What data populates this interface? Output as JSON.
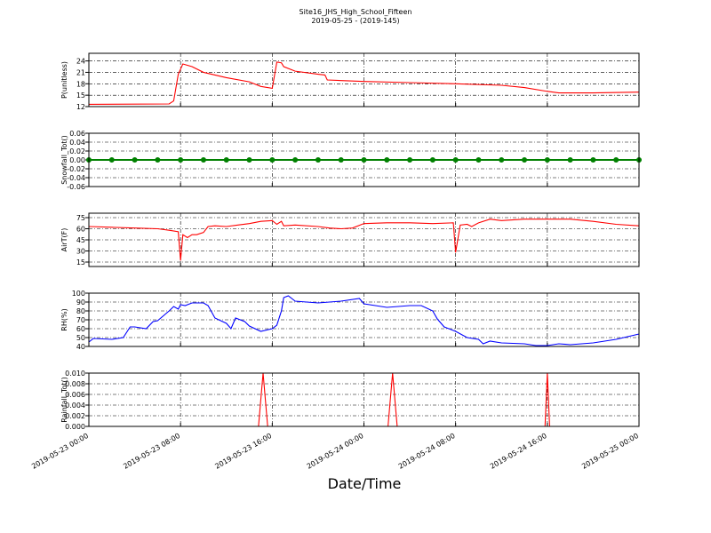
{
  "chart_data": [
    {
      "type": "line",
      "title": "Site16_JHS_High_School_Fifteen",
      "subtitle": "2019-05-25 - (2019-145)",
      "ylabel": "P(unitless)",
      "color": "#ff0000",
      "grid": true,
      "ylim": [
        12,
        26
      ],
      "yticks": [
        12,
        15,
        18,
        21,
        24
      ],
      "x": [
        "2019-05-23 00:00",
        "2019-05-23 07:00",
        "2019-05-23 07:24",
        "2019-05-23 07:48",
        "2019-05-23 08:12",
        "2019-05-23 09:00",
        "2019-05-23 10:00",
        "2019-05-23 12:00",
        "2019-05-23 14:00",
        "2019-05-23 15:00",
        "2019-05-23 16:00",
        "2019-05-23 16:24",
        "2019-05-23 16:48",
        "2019-05-23 17:00",
        "2019-05-23 18:00",
        "2019-05-23 20:00",
        "2019-05-23 20:36",
        "2019-05-23 20:48",
        "2019-05-24 00:00",
        "2019-05-24 04:00",
        "2019-05-24 08:00",
        "2019-05-24 12:00",
        "2019-05-24 14:00",
        "2019-05-24 16:00",
        "2019-05-24 17:00",
        "2019-05-24 20:00",
        "2019-05-25 00:00"
      ],
      "values": [
        12.6,
        12.7,
        13.5,
        20.5,
        23.2,
        22.5,
        21.0,
        19.6,
        18.5,
        17.3,
        16.8,
        23.7,
        23.5,
        22.5,
        21.3,
        20.5,
        20.3,
        19.0,
        18.6,
        18.3,
        18.0,
        17.6,
        17.0,
        16.0,
        15.6,
        15.6,
        15.8
      ]
    },
    {
      "type": "line",
      "ylabel": "Snowfall_Tot()",
      "color": "#008000",
      "marker": "o",
      "grid": true,
      "ylim": [
        -0.06,
        0.06
      ],
      "yticks": [
        -0.06,
        -0.04,
        -0.02,
        {
          "value": 0,
          "label": "0.00"
        },
        0.02,
        0.04,
        0.06
      ],
      "x": [
        "2019-05-23 00:00",
        "2019-05-23 02:00",
        "2019-05-23 04:00",
        "2019-05-23 06:00",
        "2019-05-23 08:00",
        "2019-05-23 10:00",
        "2019-05-23 12:00",
        "2019-05-23 14:00",
        "2019-05-23 16:00",
        "2019-05-23 18:00",
        "2019-05-23 20:00",
        "2019-05-23 22:00",
        "2019-05-24 00:00",
        "2019-05-24 02:00",
        "2019-05-24 04:00",
        "2019-05-24 06:00",
        "2019-05-24 08:00",
        "2019-05-24 10:00",
        "2019-05-24 12:00",
        "2019-05-24 14:00",
        "2019-05-24 16:00",
        "2019-05-24 18:00",
        "2019-05-24 20:00",
        "2019-05-24 22:00",
        "2019-05-25 00:00"
      ],
      "values": [
        0,
        0,
        0,
        0,
        0,
        0,
        0,
        0,
        0,
        0,
        0,
        0,
        0,
        0,
        0,
        0,
        0,
        0,
        0,
        0,
        0,
        0,
        0,
        0,
        0
      ]
    },
    {
      "type": "line",
      "ylabel": "AirT(F)",
      "color": "#ff0000",
      "grid": true,
      "ylim": [
        9,
        81
      ],
      "yticks": [
        15,
        30,
        45,
        60,
        75
      ],
      "x": [
        "2019-05-23 00:00",
        "2019-05-23 02:00",
        "2019-05-23 04:00",
        "2019-05-23 06:00",
        "2019-05-23 07:00",
        "2019-05-23 07:48",
        "2019-05-23 08:00",
        "2019-05-23 08:12",
        "2019-05-23 08:36",
        "2019-05-23 09:00",
        "2019-05-23 09:24",
        "2019-05-23 10:00",
        "2019-05-23 10:24",
        "2019-05-23 11:00",
        "2019-05-23 12:00",
        "2019-05-23 13:00",
        "2019-05-23 14:00",
        "2019-05-23 15:00",
        "2019-05-23 16:00",
        "2019-05-23 16:24",
        "2019-05-23 16:48",
        "2019-05-23 17:00",
        "2019-05-23 18:00",
        "2019-05-23 20:00",
        "2019-05-23 21:00",
        "2019-05-23 22:00",
        "2019-05-23 23:00",
        "2019-05-24 00:00",
        "2019-05-24 02:00",
        "2019-05-24 04:00",
        "2019-05-24 06:00",
        "2019-05-24 07:48",
        "2019-05-24 08:00",
        "2019-05-24 08:24",
        "2019-05-24 09:00",
        "2019-05-24 09:24",
        "2019-05-24 10:00",
        "2019-05-24 11:00",
        "2019-05-24 12:00",
        "2019-05-24 14:00",
        "2019-05-24 16:00",
        "2019-05-24 18:00",
        "2019-05-24 20:00",
        "2019-05-24 22:00",
        "2019-05-25 00:00"
      ],
      "values": [
        63,
        62,
        61,
        60,
        58,
        56,
        17,
        52,
        48,
        52,
        52,
        55,
        63,
        64,
        63,
        65,
        67,
        70,
        71,
        66,
        70,
        64,
        65,
        63,
        61,
        60,
        61,
        67,
        68,
        68,
        67,
        68,
        28,
        65,
        66,
        63,
        68,
        73,
        71,
        73,
        73,
        73,
        70,
        66,
        64
      ]
    },
    {
      "type": "line",
      "ylabel": "RH(%)",
      "color": "#0000ff",
      "grid": true,
      "ylim": [
        40,
        100
      ],
      "yticks": [
        40,
        50,
        60,
        70,
        80,
        90,
        100
      ],
      "x": [
        "2019-05-23 00:00",
        "2019-05-23 00:24",
        "2019-05-23 02:00",
        "2019-05-23 03:00",
        "2019-05-23 03:36",
        "2019-05-23 04:00",
        "2019-05-23 05:00",
        "2019-05-23 05:36",
        "2019-05-23 06:00",
        "2019-05-23 07:00",
        "2019-05-23 07:24",
        "2019-05-23 07:48",
        "2019-05-23 08:00",
        "2019-05-23 08:24",
        "2019-05-23 09:00",
        "2019-05-23 10:00",
        "2019-05-23 10:24",
        "2019-05-23 11:00",
        "2019-05-23 12:00",
        "2019-05-23 12:24",
        "2019-05-23 12:48",
        "2019-05-23 13:36",
        "2019-05-23 14:00",
        "2019-05-23 15:00",
        "2019-05-23 16:00",
        "2019-05-23 16:24",
        "2019-05-23 16:48",
        "2019-05-23 17:00",
        "2019-05-23 17:24",
        "2019-05-23 18:00",
        "2019-05-23 20:00",
        "2019-05-23 22:00",
        "2019-05-23 23:36",
        "2019-05-24 00:00",
        "2019-05-24 01:00",
        "2019-05-24 02:00",
        "2019-05-24 04:00",
        "2019-05-24 05:00",
        "2019-05-24 06:00",
        "2019-05-24 06:24",
        "2019-05-24 07:00",
        "2019-05-24 08:00",
        "2019-05-24 09:00",
        "2019-05-24 10:00",
        "2019-05-24 10:24",
        "2019-05-24 11:00",
        "2019-05-24 12:00",
        "2019-05-24 14:00",
        "2019-05-24 15:00",
        "2019-05-24 16:00",
        "2019-05-24 17:00",
        "2019-05-24 18:00",
        "2019-05-24 20:00",
        "2019-05-24 22:00",
        "2019-05-25 00:00"
      ],
      "values": [
        45,
        49,
        48,
        50,
        62,
        62,
        60,
        68,
        69,
        80,
        85,
        82,
        87,
        86,
        89,
        89,
        86,
        72,
        66,
        60,
        72,
        68,
        63,
        57,
        60,
        64,
        80,
        95,
        97,
        91,
        89,
        91,
        94,
        88,
        86,
        84,
        86,
        86,
        80,
        71,
        62,
        57,
        50,
        48,
        43,
        46,
        44,
        43,
        41,
        41,
        43,
        42,
        44,
        48,
        54
      ]
    },
    {
      "type": "line",
      "ylabel": "Rainfall_Tot()",
      "xlabel": "Date/Time",
      "color": "#ff0000",
      "grid": true,
      "ylim": [
        0,
        0.01
      ],
      "yticks": [
        {
          "value": 0,
          "label": "0.000"
        },
        0.002,
        0.004,
        0.006,
        0.008,
        {
          "value": 0.01,
          "label": "0.010"
        }
      ],
      "xlim": [
        "2019-05-23 00:00",
        "2019-05-25 00:00"
      ],
      "xticks": [
        "2019-05-23 00:00",
        "2019-05-23 08:00",
        "2019-05-23 16:00",
        "2019-05-24 00:00",
        "2019-05-24 08:00",
        "2019-05-24 16:00",
        "2019-05-25 00:00"
      ],
      "x": [
        "2019-05-23 00:00",
        "2019-05-23 14:48",
        "2019-05-23 15:12",
        "2019-05-23 15:36",
        "2019-05-24 02:06",
        "2019-05-24 02:30",
        "2019-05-24 02:54",
        "2019-05-24 15:48",
        "2019-05-24 16:00",
        "2019-05-24 16:12",
        "2019-05-25 00:00"
      ],
      "values": [
        0,
        0,
        0.01,
        0,
        0,
        0.01,
        0,
        0,
        0.01,
        0,
        0
      ]
    }
  ]
}
